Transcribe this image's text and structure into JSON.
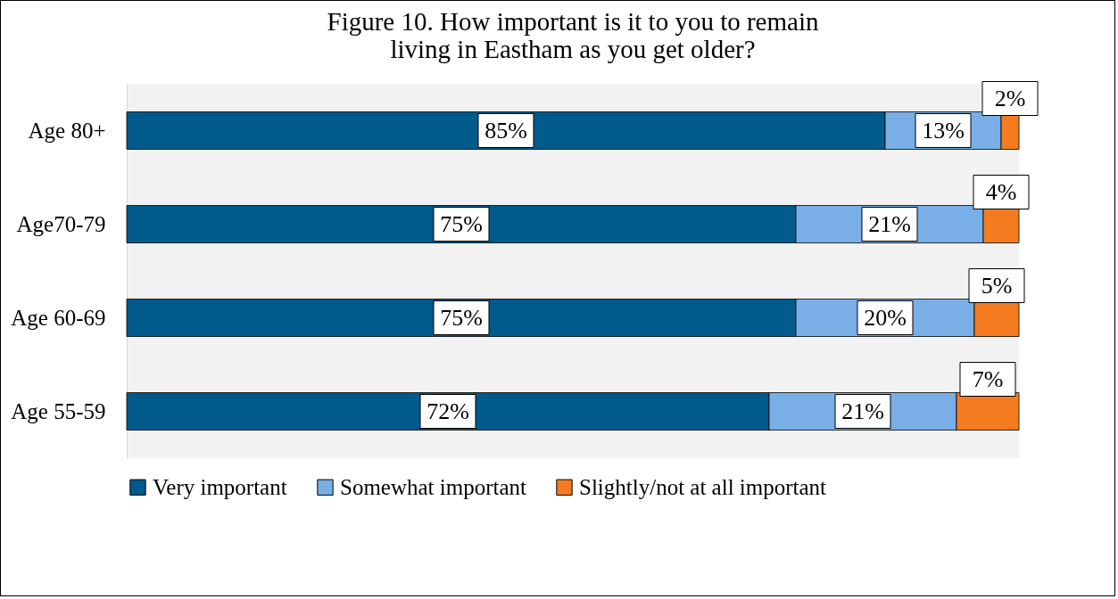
{
  "chart_data": {
    "type": "bar",
    "orientation": "horizontal",
    "stacked": true,
    "title": "Figure 10. How important is it to you to remain living in Eastham as you get older?",
    "categories": [
      "Age 80+",
      "Age70-79",
      "Age 60-69",
      "Age 55-59"
    ],
    "series": [
      {
        "name": "Very important",
        "color": "#005a8c",
        "values": [
          85,
          75,
          75,
          72
        ],
        "value_labels": [
          "85%",
          "75%",
          "75%",
          "72%"
        ]
      },
      {
        "name": "Somewhat important",
        "color": "#7aaee6",
        "values": [
          13,
          21,
          20,
          21
        ],
        "value_labels": [
          "13%",
          "21%",
          "20%",
          "21%"
        ]
      },
      {
        "name": "Slightly/not at all important",
        "color": "#f47b20",
        "values": [
          2,
          4,
          5,
          7
        ],
        "value_labels": [
          "2%",
          "4%",
          "5%",
          "7%"
        ]
      }
    ],
    "legend": "bottom",
    "grid": false
  }
}
